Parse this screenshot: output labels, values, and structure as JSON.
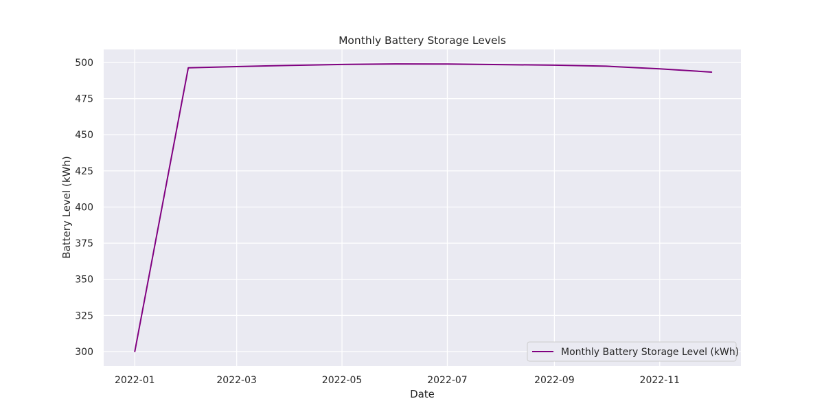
{
  "chart_data": {
    "type": "line",
    "title": "Monthly Battery Storage Levels",
    "xlabel": "Date",
    "ylabel": "Battery Level (kWh)",
    "x": [
      "2022-01-01",
      "2022-02-01",
      "2022-03-01",
      "2022-04-01",
      "2022-05-01",
      "2022-06-01",
      "2022-07-01",
      "2022-08-01",
      "2022-09-01",
      "2022-10-01",
      "2022-11-01",
      "2022-12-01"
    ],
    "series": [
      {
        "name": "Monthly Battery Storage Level (kWh)",
        "color": "#800080",
        "values": [
          300,
          496.3,
          497.1,
          498.0,
          498.6,
          499.0,
          498.9,
          498.5,
          498.1,
          497.4,
          495.6,
          493.3
        ]
      }
    ],
    "xticks": [
      "2022-01",
      "2022-03",
      "2022-05",
      "2022-07",
      "2022-09",
      "2022-11"
    ],
    "yticks": [
      300,
      325,
      350,
      375,
      400,
      425,
      450,
      475,
      500
    ],
    "xlim": [
      "2021-12-14",
      "2022-12-18"
    ],
    "ylim": [
      290,
      509
    ],
    "grid": true,
    "legend_position": "lower-right"
  }
}
